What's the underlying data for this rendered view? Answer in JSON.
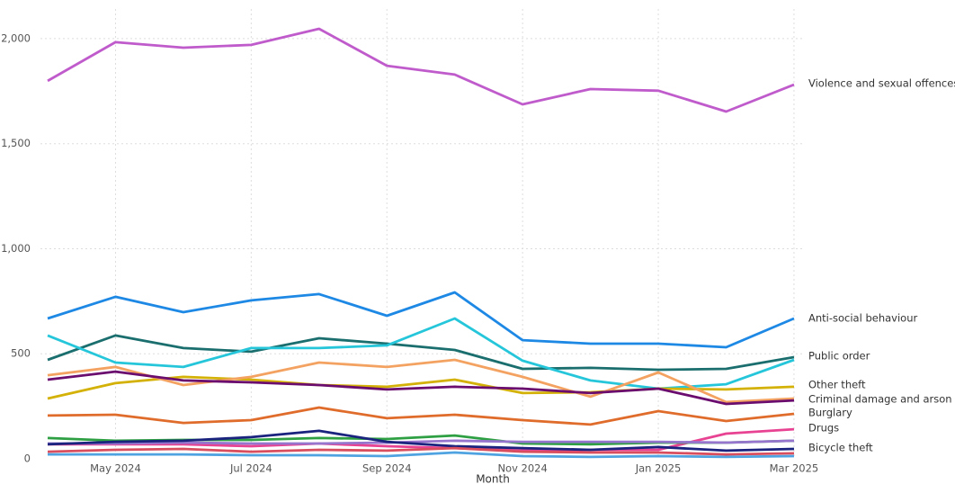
{
  "chart_data": {
    "type": "line",
    "x_label": "Month",
    "categories": [
      null,
      "May 2024",
      null,
      "Jul 2024",
      null,
      "Sep 2024",
      null,
      "Nov 2024",
      null,
      "Jan 2025",
      null,
      "Mar 2025"
    ],
    "ylim": [
      0,
      2141
    ],
    "yticks": [
      0,
      500,
      {
        "value": 1000,
        "label": "1,000"
      },
      {
        "value": 1500,
        "label": "1,500"
      },
      {
        "value": 2000,
        "label": "2,000"
      }
    ],
    "grid": true,
    "series": [
      {
        "name": "Violence and sexual offences",
        "color": "#c05bcc",
        "values": [
          1799,
          1983,
          1957,
          1970,
          2047,
          1871,
          1829,
          1687,
          1760,
          1752,
          1653,
          1781
        ]
      },
      {
        "name": "Anti-social behaviour",
        "color": "#1e88e5",
        "values": [
          668,
          771,
          698,
          754,
          784,
          681,
          792,
          565,
          548,
          548,
          531,
          668
        ]
      },
      {
        "name": "Public order",
        "color": "#1b6e6e",
        "values": [
          471,
          587,
          527,
          510,
          574,
          548,
          518,
          428,
          433,
          424,
          428,
          484
        ]
      },
      {
        "color": "#26c6da",
        "values": [
          587,
          458,
          437,
          527,
          527,
          540,
          668,
          467,
          373,
          334,
          355,
          471
        ]
      },
      {
        "name": "Other theft",
        "color": "#d4b106",
        "values": [
          287,
          360,
          390,
          377,
          351,
          343,
          377,
          313,
          317,
          334,
          330,
          343
        ]
      },
      {
        "name": "Criminal damage and arson",
        "color": "#f4a261",
        "values": [
          398,
          437,
          351,
          390,
          458,
          437,
          471,
          390,
          296,
          411,
          270,
          287
        ]
      },
      {
        "color": "#6a0d6e",
        "values": [
          377,
          415,
          373,
          364,
          351,
          330,
          343,
          334,
          313,
          334,
          261,
          278
        ]
      },
      {
        "name": "Burglary",
        "color": "#e06c2c",
        "values": [
          206,
          210,
          171,
          184,
          244,
          193,
          210,
          184,
          163,
          227,
          180,
          214
        ]
      },
      {
        "name": "Drugs",
        "color": "#e84393",
        "values": [
          69,
          69,
          69,
          60,
          73,
          60,
          51,
          39,
          43,
          43,
          120,
          141
        ]
      },
      {
        "color": "#2ea043",
        "values": [
          99,
          86,
          90,
          90,
          99,
          94,
          111,
          73,
          69,
          77,
          77,
          86
        ]
      },
      {
        "color": "#9575cd",
        "values": [
          73,
          73,
          77,
          73,
          73,
          77,
          86,
          81,
          81,
          81,
          77,
          86
        ]
      },
      {
        "name": "Bicycle theft",
        "color": "#1a237e",
        "values": [
          69,
          81,
          86,
          103,
          133,
          81,
          60,
          51,
          43,
          56,
          39,
          47
        ]
      },
      {
        "color": "#d94e5e",
        "values": [
          34,
          43,
          47,
          34,
          43,
          39,
          51,
          34,
          30,
          30,
          21,
          26
        ]
      },
      {
        "color": "#4fa3e0",
        "values": [
          21,
          21,
          21,
          17,
          17,
          13,
          30,
          13,
          9,
          13,
          9,
          13
        ]
      }
    ]
  }
}
